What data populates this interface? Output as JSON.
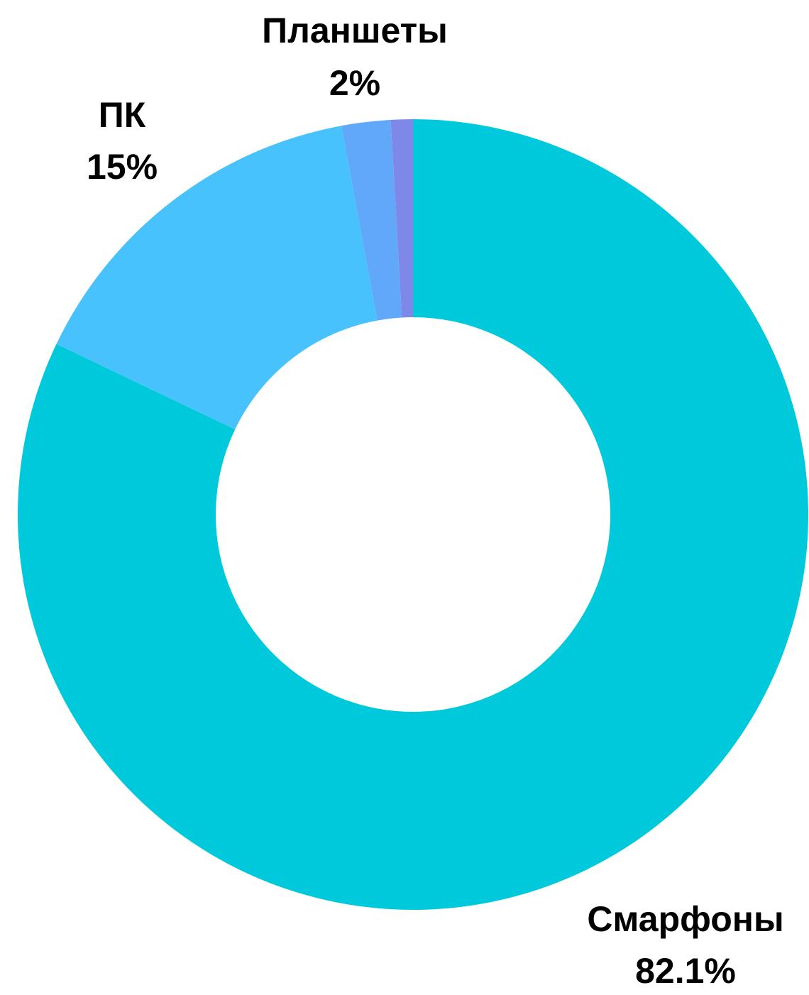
{
  "chart_data": {
    "type": "pie",
    "variant": "donut",
    "title": "",
    "slices": [
      {
        "name": "Смарфоны",
        "value": 82.1,
        "value_label": "82.1%",
        "color": "#00C9DB",
        "show_label": true
      },
      {
        "name": "ПК",
        "value": 15,
        "value_label": "15%",
        "color": "#48C2FD",
        "show_label": true
      },
      {
        "name": "Планшеты",
        "value": 2,
        "value_label": "2%",
        "color": "#62A8FA",
        "show_label": true
      },
      {
        "name": "",
        "value": 0.9,
        "value_label": "",
        "color": "#7E88E8",
        "show_label": false
      }
    ],
    "legend": "none",
    "start_angle": "12 o'clock",
    "direction": "clockwise"
  }
}
